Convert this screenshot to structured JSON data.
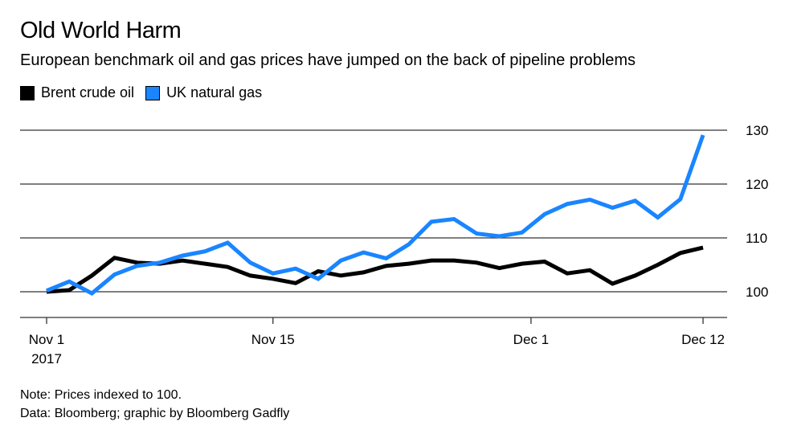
{
  "chart_data": {
    "type": "line",
    "title": "Old World Harm",
    "subtitle": "European benchmark oil and gas prices have jumped on the back of pipeline problems",
    "x": [
      "Nov 1",
      "Nov 2",
      "Nov 3",
      "Nov 6",
      "Nov 7",
      "Nov 8",
      "Nov 9",
      "Nov 10",
      "Nov 13",
      "Nov 14",
      "Nov 15",
      "Nov 16",
      "Nov 17",
      "Nov 20",
      "Nov 21",
      "Nov 22",
      "Nov 23",
      "Nov 24",
      "Nov 27",
      "Nov 28",
      "Nov 29",
      "Nov 30",
      "Dec 1",
      "Dec 4",
      "Dec 5",
      "Dec 6",
      "Dec 7",
      "Dec 8",
      "Dec 11",
      "Dec 12"
    ],
    "x_ticks": [
      {
        "index": 0,
        "label": "Nov 1",
        "sub": "2017"
      },
      {
        "index": 10,
        "label": "Nov 15",
        "sub": ""
      },
      {
        "index": 21.4,
        "label": "Dec 1",
        "sub": ""
      },
      {
        "index": 29,
        "label": "Dec 12",
        "sub": ""
      }
    ],
    "ylim": [
      95,
      131
    ],
    "y_ticks": [
      100,
      110,
      120,
      130
    ],
    "grid": true,
    "legend_position": "top-left",
    "series": [
      {
        "name": "Brent crude oil",
        "color": "#000000",
        "values": [
          100,
          100.3,
          103,
          106.3,
          105.4,
          105.2,
          105.8,
          105.2,
          104.6,
          103,
          102.4,
          101.6,
          103.8,
          103,
          103.6,
          104.8,
          105.2,
          105.8,
          105.8,
          105.4,
          104.4,
          105.2,
          105.6,
          103.4,
          104,
          101.5,
          103,
          105,
          107.2,
          108.2
        ]
      },
      {
        "name": "UK natural gas",
        "color": "#1a85ff",
        "values": [
          100.2,
          101.9,
          99.7,
          103.2,
          104.8,
          105.4,
          106.7,
          107.5,
          109.1,
          105.4,
          103.4,
          104.3,
          102.4,
          105.8,
          107.3,
          106.2,
          108.8,
          113,
          113.5,
          110.8,
          110.3,
          111,
          114.4,
          116.3,
          117.1,
          115.6,
          116.9,
          113.8,
          117.2,
          129.1
        ]
      }
    ]
  },
  "notes": [
    "Note: Prices indexed to 100.",
    "Data: Bloomberg; graphic by Bloomberg Gadfly"
  ]
}
